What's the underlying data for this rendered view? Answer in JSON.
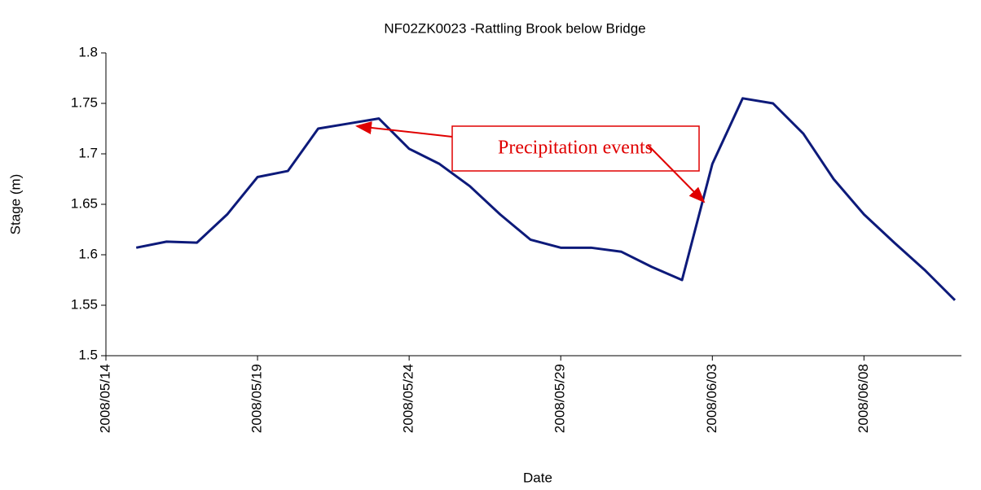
{
  "chart_data": {
    "type": "line",
    "title": "NF02ZK0023 -Rattling Brook below Bridge",
    "x_label": "Date",
    "y_label": "Stage (m)",
    "annotation": "Precipitation events",
    "x": [
      "2008/05/15",
      "2008/05/16",
      "2008/05/17",
      "2008/05/18",
      "2008/05/19",
      "2008/05/20",
      "2008/05/21",
      "2008/05/22",
      "2008/05/23",
      "2008/05/24",
      "2008/05/25",
      "2008/05/26",
      "2008/05/27",
      "2008/05/28",
      "2008/05/29",
      "2008/05/30",
      "2008/05/31",
      "2008/06/01",
      "2008/06/02",
      "2008/06/03",
      "2008/06/04",
      "2008/06/05",
      "2008/06/06",
      "2008/06/07",
      "2008/06/08",
      "2008/06/09",
      "2008/06/10",
      "2008/06/11"
    ],
    "series": [
      {
        "name": "Stage (m)",
        "color": "#0d1a7a",
        "values": [
          1.607,
          1.613,
          1.612,
          1.64,
          1.677,
          1.683,
          1.725,
          1.73,
          1.735,
          1.705,
          1.69,
          1.668,
          1.64,
          1.615,
          1.607,
          1.607,
          1.603,
          1.588,
          1.575,
          1.69,
          1.755,
          1.75,
          1.72,
          1.675,
          1.64,
          1.612,
          1.585,
          1.555
        ]
      }
    ],
    "xlim": [
      "2008/05/14",
      "2008/06/11"
    ],
    "xticks": [
      "2008/05/14",
      "2008/05/19",
      "2008/05/24",
      "2008/05/29",
      "2008/06/03",
      "2008/06/08"
    ],
    "ylim": [
      1.5,
      1.8
    ],
    "yticks": [
      1.5,
      1.55,
      1.6,
      1.65,
      1.7,
      1.75,
      1.8
    ],
    "grid": false
  }
}
